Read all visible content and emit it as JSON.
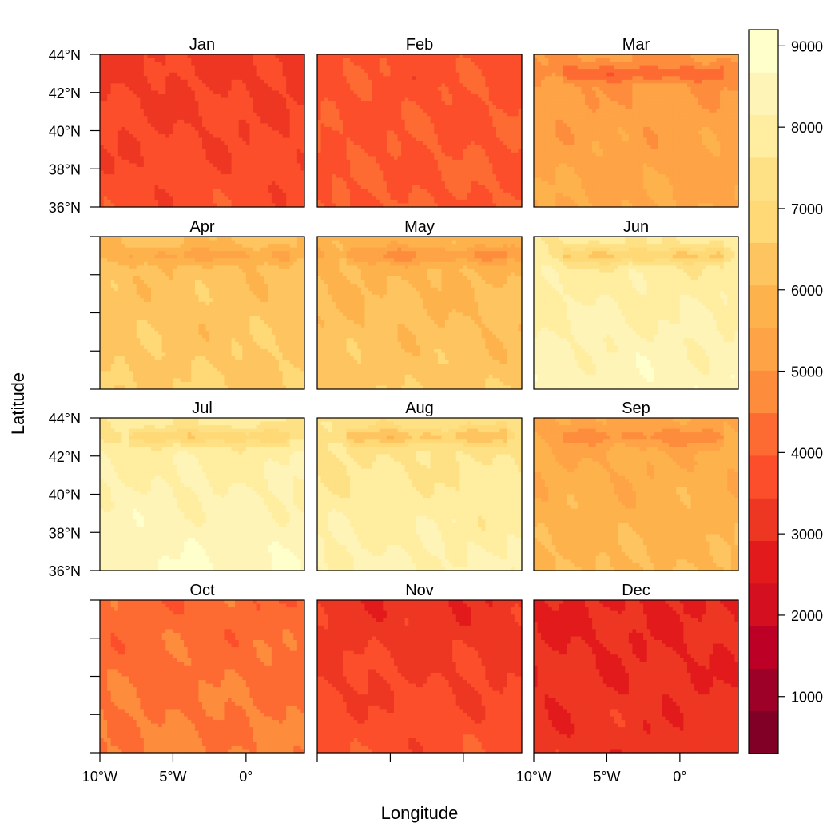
{
  "chart_data": {
    "type": "heatmap",
    "xlabel": "Longitude",
    "ylabel": "Latitude",
    "xlim": [
      -10,
      4
    ],
    "ylim": [
      36,
      44
    ],
    "x_ticks": [
      {
        "value": -10,
        "label": "10°W"
      },
      {
        "value": -5,
        "label": "5°W"
      },
      {
        "value": 0,
        "label": "0°"
      }
    ],
    "y_ticks": [
      {
        "value": 36,
        "label": "36°N"
      },
      {
        "value": 38,
        "label": "38°N"
      },
      {
        "value": 40,
        "label": "40°N"
      },
      {
        "value": 42,
        "label": "42°N"
      },
      {
        "value": 44,
        "label": "44°N"
      }
    ],
    "colorbar": {
      "min": 300,
      "max": 9200,
      "ticks": [
        {
          "value": 1000,
          "label": "1000"
        },
        {
          "value": 2000,
          "label": "2000"
        },
        {
          "value": 3000,
          "label": "3000"
        },
        {
          "value": 4000,
          "label": "4000"
        },
        {
          "value": 5000,
          "label": "5000"
        },
        {
          "value": 6000,
          "label": "6000"
        },
        {
          "value": 7000,
          "label": "7000"
        },
        {
          "value": 8000,
          "label": "8000"
        },
        {
          "value": 9000,
          "label": "9000"
        }
      ],
      "colors": [
        "#800026",
        "#9e0127",
        "#bd0026",
        "#d41020",
        "#e31a1c",
        "#ee3723",
        "#fc4e2a",
        "#fd6a32",
        "#fd8d3c",
        "#fea346",
        "#feb24c",
        "#fec460",
        "#fed976",
        "#fee085",
        "#ffeda0",
        "#fff4b8",
        "#ffffcc"
      ]
    },
    "panels": [
      {
        "name": "Jan",
        "mean": 3550,
        "north_offset": -400,
        "ridge": 0
      },
      {
        "name": "Feb",
        "mean": 3900,
        "north_offset": -150,
        "ridge": 0
      },
      {
        "name": "Mar",
        "mean": 5300,
        "north_offset": -500,
        "ridge": -900
      },
      {
        "name": "Apr",
        "mean": 6400,
        "north_offset": -400,
        "ridge": -800
      },
      {
        "name": "May",
        "mean": 6200,
        "north_offset": -600,
        "ridge": -900
      },
      {
        "name": "Jun",
        "mean": 8200,
        "north_offset": -800,
        "ridge": -1200
      },
      {
        "name": "Jul",
        "mean": 8300,
        "north_offset": -900,
        "ridge": -1100
      },
      {
        "name": "Aug",
        "mean": 7900,
        "north_offset": -900,
        "ridge": -1100
      },
      {
        "name": "Sep",
        "mean": 5800,
        "north_offset": -600,
        "ridge": -700
      },
      {
        "name": "Oct",
        "mean": 4400,
        "north_offset": -400,
        "ridge": 0
      },
      {
        "name": "Nov",
        "mean": 3500,
        "north_offset": -700,
        "ridge": 0
      },
      {
        "name": "Dec",
        "mean": 3050,
        "north_offset": -300,
        "ridge": 0
      }
    ]
  }
}
